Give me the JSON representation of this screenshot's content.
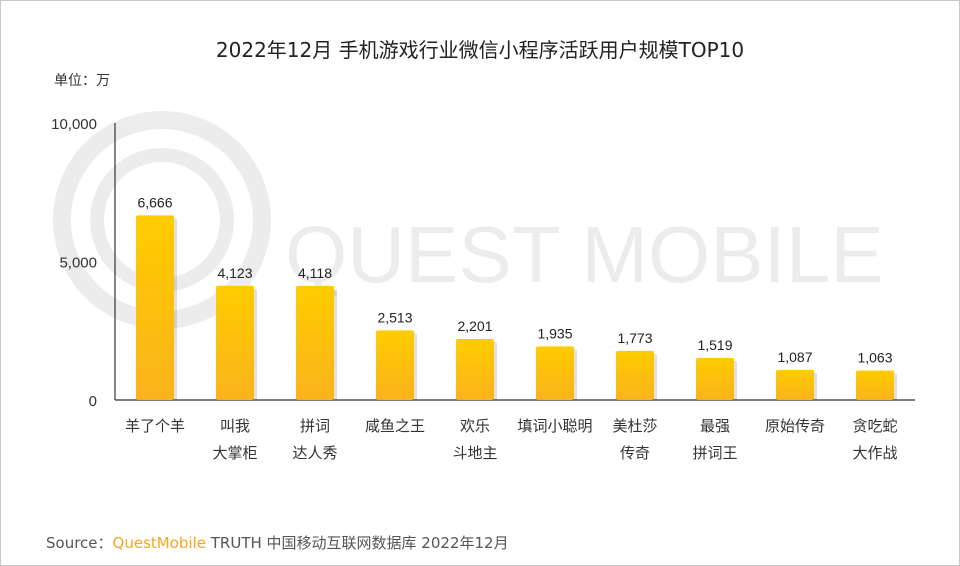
{
  "chart_data": {
    "type": "bar",
    "title": "2022年12月 手机游戏行业微信小程序活跃用户规模TOP10",
    "unit_label": "单位：万",
    "categories": [
      [
        "羊了个羊"
      ],
      [
        "叫我",
        "大掌柜"
      ],
      [
        "拼词",
        "达人秀"
      ],
      [
        "咸鱼之王"
      ],
      [
        "欢乐",
        "斗地主"
      ],
      [
        "填词小聪明"
      ],
      [
        "美杜莎",
        "传奇"
      ],
      [
        "最强",
        "拼词王"
      ],
      [
        "原始传奇"
      ],
      [
        "贪吃蛇",
        "大作战"
      ]
    ],
    "values": [
      6666,
      4123,
      4118,
      2513,
      2201,
      1935,
      1773,
      1519,
      1087,
      1063
    ],
    "data_labels": [
      "6,666",
      "4,123",
      "4,118",
      "2,513",
      "2,201",
      "1,935",
      "1,773",
      "1,519",
      "1,087",
      "1,063"
    ],
    "ylim": [
      0,
      10000
    ],
    "yticks": [
      "0",
      "5,000",
      "10,000"
    ],
    "ytick_values": [
      0,
      5000,
      10000
    ],
    "grid": false,
    "bar_color_top": "#ffcc00",
    "bar_color_bottom": "#fbb31c"
  },
  "watermark": "QUEST MOBILE",
  "source": {
    "prefix": "Source：",
    "brand": "QuestMobile",
    "text": "TRUTH 中国移动互联网数据库 2022年12月"
  }
}
